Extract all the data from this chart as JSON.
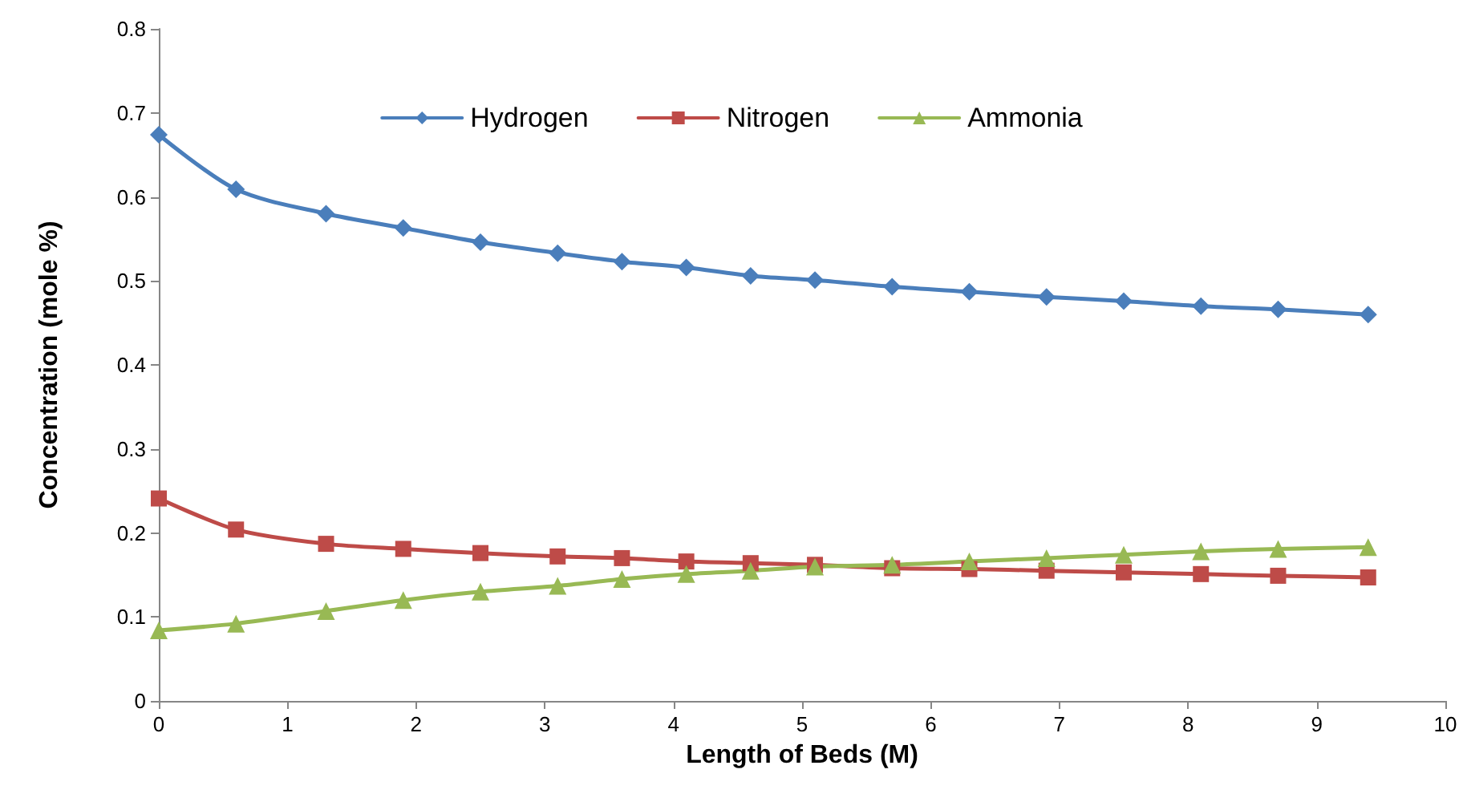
{
  "chart_data": {
    "type": "line",
    "xlabel": "Length of Beds (M)",
    "ylabel": "Concentration (mole %)",
    "x": [
      0,
      0.6,
      1.3,
      1.9,
      2.5,
      3.1,
      3.6,
      4.1,
      4.6,
      5.1,
      5.7,
      6.3,
      6.9,
      7.5,
      8.1,
      8.7,
      9.4
    ],
    "series": [
      {
        "name": "Hydrogen",
        "color": "#4a7ebb",
        "marker": "diamond",
        "values": [
          0.674,
          0.609,
          0.58,
          0.563,
          0.546,
          0.533,
          0.523,
          0.516,
          0.506,
          0.501,
          0.493,
          0.487,
          0.481,
          0.476,
          0.47,
          0.466,
          0.46
        ]
      },
      {
        "name": "Nitrogen",
        "color": "#be4b48",
        "marker": "square",
        "values": [
          0.241,
          0.204,
          0.187,
          0.181,
          0.176,
          0.172,
          0.17,
          0.166,
          0.164,
          0.162,
          0.158,
          0.157,
          0.155,
          0.153,
          0.151,
          0.149,
          0.147
        ]
      },
      {
        "name": "Ammonia",
        "color": "#98b954",
        "marker": "triangle",
        "values": [
          0.084,
          0.092,
          0.107,
          0.12,
          0.13,
          0.137,
          0.145,
          0.151,
          0.155,
          0.16,
          0.162,
          0.166,
          0.17,
          0.174,
          0.178,
          0.181,
          0.183
        ]
      }
    ],
    "xlim": [
      0,
      10
    ],
    "xticks": [
      0,
      1,
      2,
      3,
      4,
      5,
      6,
      7,
      8,
      9,
      10
    ],
    "ylim": [
      0,
      0.8
    ],
    "yticks": [
      0,
      0.1,
      0.2,
      0.3,
      0.4,
      0.5,
      0.6,
      0.7,
      0.8
    ],
    "grid": false,
    "legend": "top",
    "line_style": "solid"
  }
}
